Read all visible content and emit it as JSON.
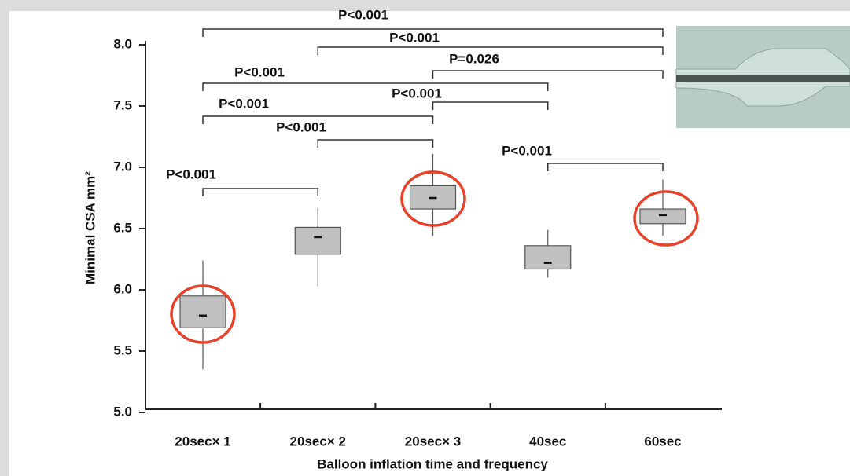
{
  "chart_data": {
    "type": "box",
    "x_label": "Balloon inflation time and frequency",
    "y_label": "Minimal CSA mm²",
    "categories": [
      "20sec× 1",
      "20sec× 2",
      "20sec× 3",
      "40sec",
      "60sec"
    ],
    "min": [
      5.35,
      6.03,
      6.44,
      6.1,
      6.44
    ],
    "q1": [
      5.69,
      6.29,
      6.66,
      6.17,
      6.54
    ],
    "median": [
      5.79,
      6.43,
      6.75,
      6.22,
      6.61
    ],
    "q3": [
      5.95,
      6.51,
      6.85,
      6.36,
      6.66
    ],
    "max": [
      6.24,
      6.67,
      7.11,
      6.49,
      6.9
    ],
    "color": "#c0c0c0",
    "ylim": [
      5,
      8
    ],
    "yticks": [
      {
        "value": 5,
        "label": "5.0"
      },
      {
        "value": 5.5,
        "label": "5.5"
      },
      {
        "value": 6,
        "label": "6.0"
      },
      {
        "value": 6.5,
        "label": "6.5"
      },
      {
        "value": 7,
        "label": "7.0"
      },
      {
        "value": 7.5,
        "label": "7.5"
      },
      {
        "value": 8,
        "label": "8.0"
      }
    ],
    "annotations": [
      "P<0.001",
      "P<0.001",
      "P=0.026",
      "P<0.001",
      "P<0.001",
      "P<0.001",
      "P<0.001",
      "P<0.001",
      "P<0.001"
    ]
  }
}
